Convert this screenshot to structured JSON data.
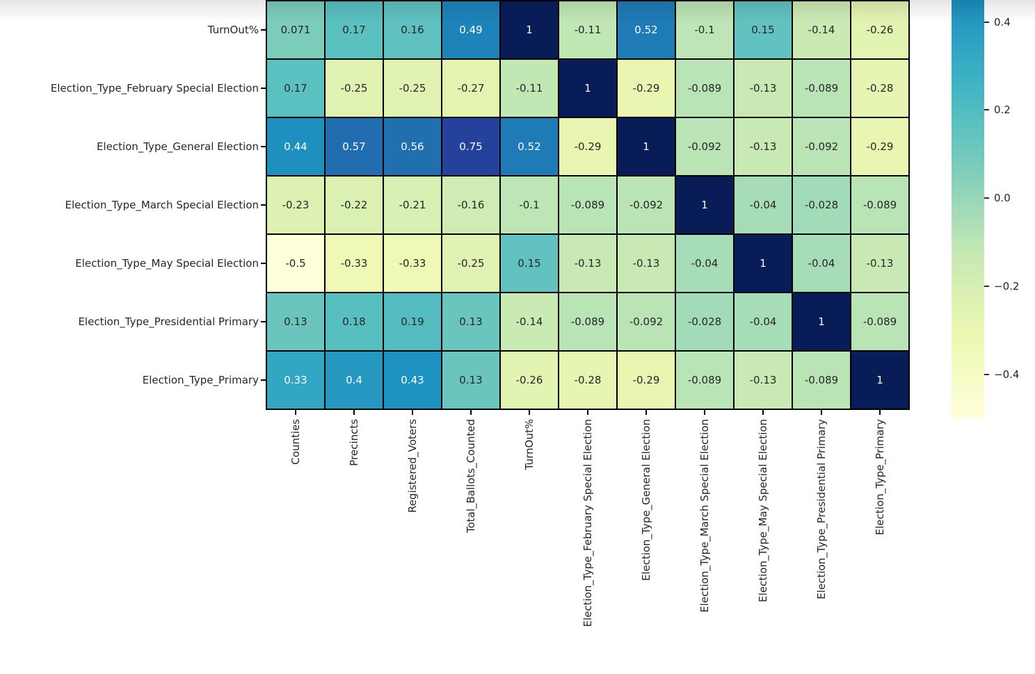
{
  "figure": {
    "background": "#ffffff",
    "description": "Correlation matrix heatmap (top rows cropped out of view)"
  },
  "chart_data": {
    "type": "heatmap",
    "title": "",
    "xlabel": "",
    "ylabel": "",
    "rows": [
      "TurnOut%",
      "Election_Type_February Special Election",
      "Election_Type_General Election",
      "Election_Type_March Special Election",
      "Election_Type_May Special Election",
      "Election_Type_Presidential Primary",
      "Election_Type_Primary"
    ],
    "columns": [
      "Counties",
      "Precincts",
      "Registered_Voters",
      "Total_Ballots_Counted",
      "TurnOut%",
      "Election_Type_February Special Election",
      "Election_Type_General Election",
      "Election_Type_March Special Election",
      "Election_Type_May Special Election",
      "Election_Type_Presidential Primary",
      "Election_Type_Primary"
    ],
    "values": [
      [
        "0.071",
        "0.17",
        "0.16",
        "0.49",
        "1",
        "-0.11",
        "0.52",
        "-0.1",
        "0.15",
        "-0.14",
        "-0.26"
      ],
      [
        "0.17",
        "-0.25",
        "-0.25",
        "-0.27",
        "-0.11",
        "1",
        "-0.29",
        "-0.089",
        "-0.13",
        "-0.089",
        "-0.28"
      ],
      [
        "0.44",
        "0.57",
        "0.56",
        "0.75",
        "0.52",
        "-0.29",
        "1",
        "-0.092",
        "-0.13",
        "-0.092",
        "-0.29"
      ],
      [
        "-0.23",
        "-0.22",
        "-0.21",
        "-0.16",
        "-0.1",
        "-0.089",
        "-0.092",
        "1",
        "-0.04",
        "-0.028",
        "-0.089"
      ],
      [
        "-0.5",
        "-0.33",
        "-0.33",
        "-0.25",
        "0.15",
        "-0.13",
        "-0.13",
        "-0.04",
        "1",
        "-0.04",
        "-0.13"
      ],
      [
        "0.13",
        "0.18",
        "0.19",
        "0.13",
        "-0.14",
        "-0.089",
        "-0.092",
        "-0.028",
        "-0.04",
        "1",
        "-0.089"
      ],
      [
        "0.33",
        "0.4",
        "0.43",
        "0.13",
        "-0.26",
        "-0.28",
        "-0.29",
        "-0.089",
        "-0.13",
        "-0.089",
        "1"
      ]
    ],
    "colormap": {
      "name": "YlGnBu",
      "vmin": -0.5,
      "vmax": 1,
      "stops": [
        [
          0.0,
          "#ffffd9"
        ],
        [
          0.125,
          "#edf8b1"
        ],
        [
          0.25,
          "#c7e9b4"
        ],
        [
          0.375,
          "#7fcdbb"
        ],
        [
          0.5,
          "#41b6c4"
        ],
        [
          0.625,
          "#1d91c0"
        ],
        [
          0.75,
          "#225ea8"
        ],
        [
          0.875,
          "#253494"
        ],
        [
          1.0,
          "#081d58"
        ]
      ]
    },
    "annotation_text_colors": {
      "light_text": "#ffffff",
      "dark_text": "#262626"
    },
    "grid_line_color": "#000000",
    "legend_position": "right",
    "colorbar": {
      "tick_labels": [
        "0.4",
        "0.2",
        "0.0",
        "−0.2",
        "−0.4"
      ],
      "tick_values": [
        0.4,
        0.2,
        0.0,
        -0.2,
        -0.4
      ],
      "visible_top_value": 0.45,
      "visible_bottom_value": -0.5
    }
  }
}
